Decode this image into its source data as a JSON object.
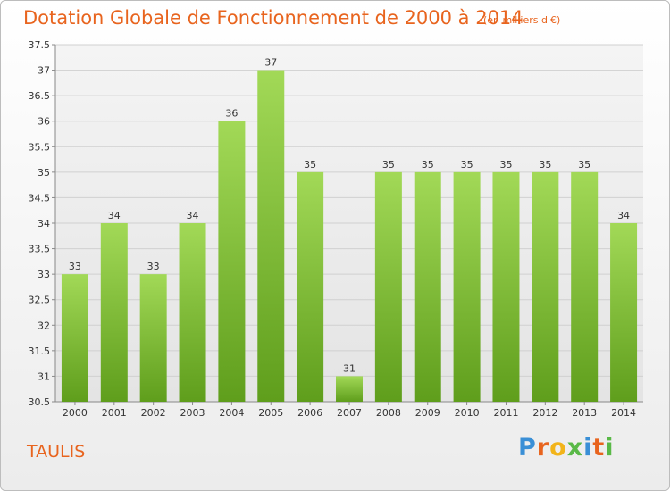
{
  "chart_data": {
    "type": "bar",
    "title": "Dotation Globale de Fonctionnement de 2000 à 2014",
    "subtitle": "(en milliers d'€)",
    "categories": [
      "2000",
      "2001",
      "2002",
      "2003",
      "2004",
      "2005",
      "2006",
      "2007",
      "2008",
      "2009",
      "2010",
      "2011",
      "2012",
      "2013",
      "2014"
    ],
    "values": [
      33,
      34,
      33,
      34,
      36,
      37,
      35,
      31,
      35,
      35,
      35,
      35,
      35,
      35,
      34
    ],
    "ylim": [
      30.5,
      37.5
    ],
    "yticks": [
      "30.5",
      "31",
      "31.5",
      "32",
      "32.5",
      "33",
      "33.5",
      "34",
      "34.5",
      "35",
      "35.5",
      "36",
      "36.5",
      "37",
      "37.5"
    ],
    "xlabel": "",
    "ylabel": "",
    "grid": true,
    "bar_color": "#8cc63f"
  },
  "commune": "TAULIS",
  "logo": "Proxiti"
}
